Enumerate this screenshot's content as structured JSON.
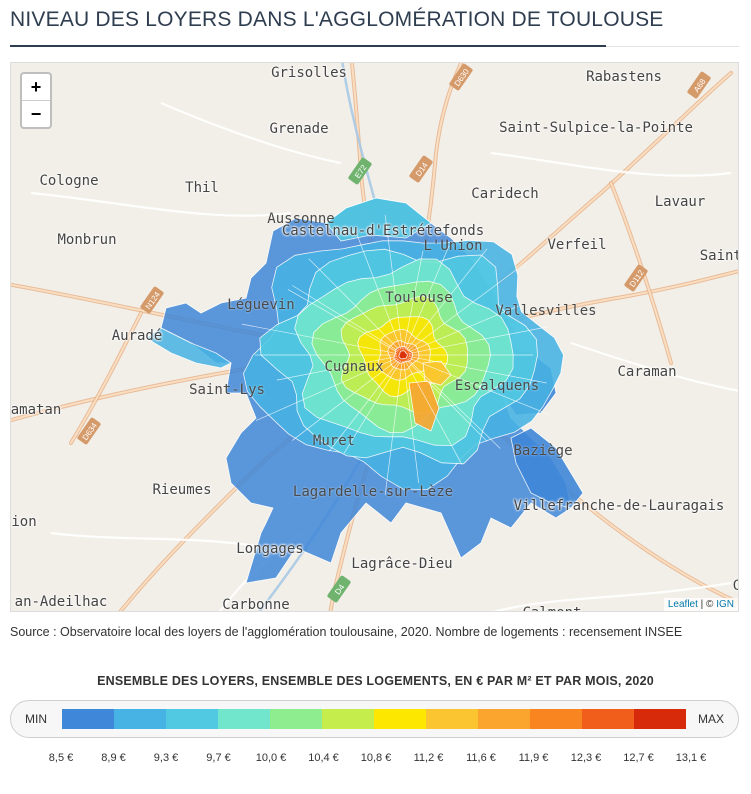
{
  "title": "NIVEAU DES LOYERS DANS L'AGGLOMÉRATION DE TOULOUSE",
  "map": {
    "zoom_in_label": "+",
    "zoom_out_label": "−",
    "attribution": {
      "leaflet": "Leaflet",
      "separator": " | © ",
      "ign": "IGN"
    },
    "places": [
      {
        "name": "Grisolles",
        "on_choropleth": false
      },
      {
        "name": "Rabastens",
        "on_choropleth": false
      },
      {
        "name": "Grenade",
        "on_choropleth": false
      },
      {
        "name": "Saint-Sulpice-la-Pointe",
        "on_choropleth": false
      },
      {
        "name": "Cologne",
        "on_choropleth": false
      },
      {
        "name": "Thil",
        "on_choropleth": false
      },
      {
        "name": "Castelnau-d'Estrétefonds",
        "on_choropleth": false
      },
      {
        "name": "Caridech",
        "on_choropleth": false
      },
      {
        "name": "Lavaur",
        "on_choropleth": false
      },
      {
        "name": "Aussonne",
        "on_choropleth": true
      },
      {
        "name": "L'Union",
        "on_choropleth": true
      },
      {
        "name": "Monbrun",
        "on_choropleth": false
      },
      {
        "name": "Verfeil",
        "on_choropleth": false
      },
      {
        "name": "Saint-",
        "on_choropleth": false
      },
      {
        "name": "Toulouse",
        "on_choropleth": true
      },
      {
        "name": "Léguevin",
        "on_choropleth": true
      },
      {
        "name": "Vallesvilles",
        "on_choropleth": true
      },
      {
        "name": "Auradé",
        "on_choropleth": false
      },
      {
        "name": "Cugnaux",
        "on_choropleth": true
      },
      {
        "name": "Caraman",
        "on_choropleth": false
      },
      {
        "name": "Saint-Lys",
        "on_choropleth": true
      },
      {
        "name": "Escalquens",
        "on_choropleth": true
      },
      {
        "name": "amatan",
        "on_choropleth": false
      },
      {
        "name": "Muret",
        "on_choropleth": true
      },
      {
        "name": "Baziège",
        "on_choropleth": true
      },
      {
        "name": "Rieumes",
        "on_choropleth": false
      },
      {
        "name": "Lagardelle-sur-Lèze",
        "on_choropleth": true
      },
      {
        "name": "Villefranche-de-Lauragais",
        "on_choropleth": false
      },
      {
        "name": "ion",
        "on_choropleth": false
      },
      {
        "name": "Longages",
        "on_choropleth": false
      },
      {
        "name": "Lagrâce-Dieu",
        "on_choropleth": false
      },
      {
        "name": "Ca",
        "on_choropleth": false
      },
      {
        "name": "an-Adeilhac",
        "on_choropleth": false
      },
      {
        "name": "Carbonne",
        "on_choropleth": false
      },
      {
        "name": "Calmont",
        "on_choropleth": false
      }
    ],
    "road_labels": [
      "D630",
      "A68",
      "D14",
      "E72",
      "D112",
      "N124",
      "D634",
      "D4"
    ],
    "choropleth_levels": [
      0,
      1,
      2,
      3,
      4,
      5,
      6,
      7,
      8,
      9,
      10,
      11
    ]
  },
  "source": "Source : Observatoire local des loyers de l'agglomération toulousaine, 2020. Nombre de logements : recensement INSEE",
  "legend": {
    "title": "ENSEMBLE DES LOYERS, ENSEMBLE DES LOGEMENTS, EN € PAR M² ET PAR MOIS, 2020",
    "min_label": "MIN",
    "max_label": "MAX",
    "colors": [
      "#3f87d8",
      "#47b3e4",
      "#52c9e3",
      "#72e6cc",
      "#8ded8f",
      "#c5ee4c",
      "#fde600",
      "#fbc531",
      "#fba42e",
      "#f98520",
      "#f15e1b",
      "#d72a0b"
    ],
    "ticks": [
      "8,5 €",
      "8,9 €",
      "9,3 €",
      "9,7 €",
      "10,0 €",
      "10,4 €",
      "10,8 €",
      "11,2 €",
      "11,6 €",
      "11,9 €",
      "12,3 €",
      "12,7 €",
      "13,1 €"
    ]
  }
}
